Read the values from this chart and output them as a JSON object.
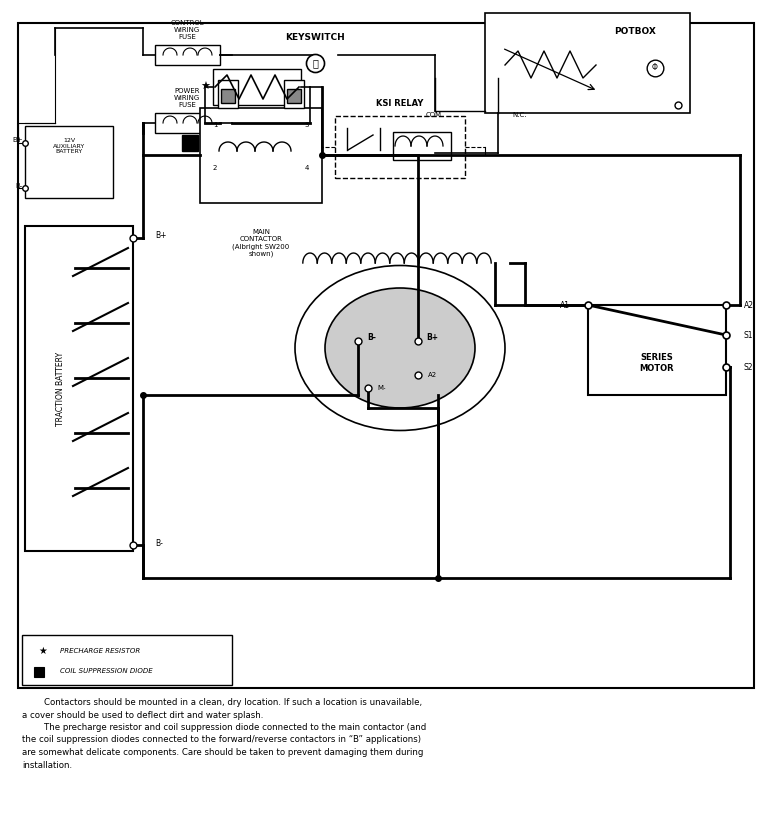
{
  "figure_width": 7.72,
  "figure_height": 8.33,
  "dpi": 100,
  "bg_color": "#ffffff",
  "para1_line1": "        Contactors should be mounted in a clean, dry location. If such a location is unavailable,",
  "para1_line2": "a cover should be used to deflect dirt and water splash.",
  "para2_line1": "        The precharge resistor and coil suppression diode connected to the main contactor (and",
  "para2_line2": "the coil suppression diodes connected to the forward/reverse contactors in “B” applications)",
  "para2_line3": "are somewhat delicate components. Care should be taken to prevent damaging them during",
  "para2_line4": "installation.",
  "legend_star_text": "PRECHARGE RESISTOR",
  "legend_square_text": "COIL SUPPRESSION DIODE",
  "title_potbox": "POTBOX",
  "title_keyswitch": "KEYSWITCH",
  "title_control_fuse": "CONTROL\nWIRING\nFUSE",
  "title_power_fuse": "POWER\nWIRING\nFUSE",
  "title_ksi": "KSI RELAY",
  "title_main_contactor": "MAIN\nCONTACTOR\n(Albright SW200\nshown)",
  "title_aux_battery": "12V\nAUXILIARY\nBATTERY",
  "title_traction": "TRACTION BATTERY",
  "title_series_motor": "SERIES\nMOTOR",
  "lbl_com": "COM.",
  "lbl_nc": "N.C.",
  "lbl_bplus": "B+",
  "lbl_bminus": "B-",
  "lbl_a1": "A1",
  "lbl_a2": "A2",
  "lbl_s1": "S1",
  "lbl_s2": "S2",
  "lbl_mminus": "M-"
}
